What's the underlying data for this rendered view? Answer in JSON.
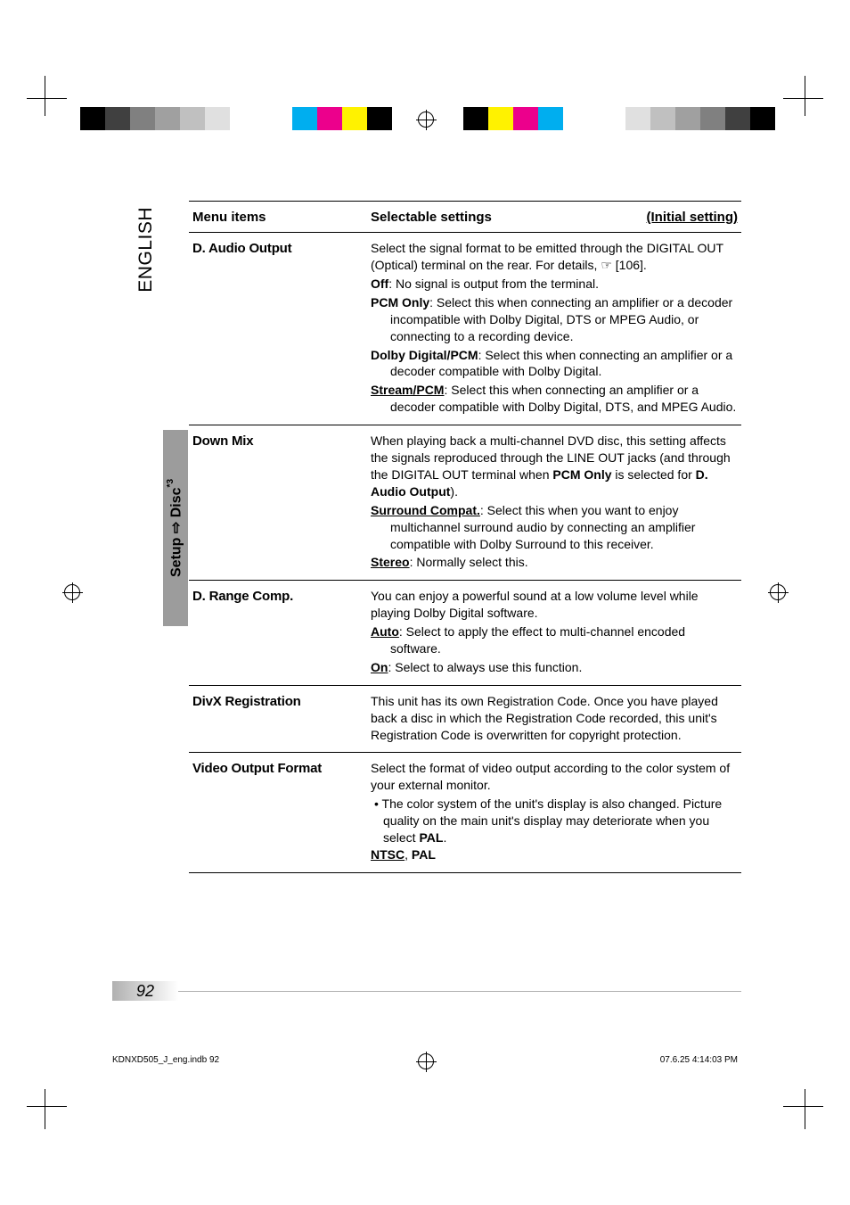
{
  "side_tab": "ENGLISH",
  "setup_tab": {
    "prefix": "Setup ",
    "arrow": "⇨",
    "suffix": " Disc",
    "sup": "*3"
  },
  "header": {
    "col1": "Menu items",
    "col2": "Selectable settings",
    "initial": "(Initial setting)"
  },
  "rows": [
    {
      "menu": "D. Audio Output",
      "body_parts": [
        {
          "t": "plain",
          "v": "Select the signal format to be emitted through the DIGITAL OUT (Optical) terminal on the rear. For details, ☞ [106]."
        },
        {
          "t": "opt",
          "label": "Off",
          "v": ": No signal is output from the terminal."
        },
        {
          "t": "opt",
          "label": "PCM Only",
          "v": ": Select this when connecting an amplifier or a decoder incompatible with Dolby Digital, DTS or MPEG Audio, or connecting to a recording device."
        },
        {
          "t": "opt",
          "label": "Dolby Digital/PCM",
          "v": ": Select this when connecting an amplifier or a decoder compatible with Dolby Digital."
        },
        {
          "t": "optu",
          "label": "Stream/PCM",
          "v": ": Select this when connecting an amplifier or a decoder compatible with Dolby Digital, DTS, and MPEG Audio."
        }
      ]
    },
    {
      "menu": "Down Mix",
      "body_parts": [
        {
          "t": "plain2",
          "pre": "When playing back a multi-channel DVD disc, this setting affects the signals reproduced through the LINE OUT jacks (and through the DIGITAL OUT terminal when ",
          "b1": "PCM Only",
          "mid": " is selected for ",
          "b2": "D. Audio Output",
          "post": ")."
        },
        {
          "t": "optu",
          "label": "Surround Compat.",
          "v": ": Select this when you want to enjoy multichannel surround audio by connecting an amplifier compatible with Dolby Surround to this receiver."
        },
        {
          "t": "optu",
          "label": "Stereo",
          "v": ": Normally select this."
        }
      ]
    },
    {
      "menu": "D. Range Comp.",
      "body_parts": [
        {
          "t": "plain",
          "v": "You can enjoy a powerful sound at a low volume level while playing Dolby Digital software."
        },
        {
          "t": "optu",
          "label": "Auto",
          "v": ": Select to apply the effect to multi-channel encoded software."
        },
        {
          "t": "optu",
          "label": "On",
          "v": ": Select to always use this function."
        }
      ]
    },
    {
      "menu": "DivX Registration",
      "body_parts": [
        {
          "t": "plain",
          "v": "This unit has its own Registration Code. Once you have played back a disc in which the Registration Code recorded, this unit's Registration Code is overwritten for copyright protection."
        }
      ]
    },
    {
      "menu": "Video Output Format",
      "body_parts": [
        {
          "t": "plain",
          "v": "Select the format of video output according to the color system of your external monitor."
        },
        {
          "t": "bullet",
          "pre": "• The color system of the unit's display is also changed. Picture quality on the main unit's display may deteriorate when you select ",
          "b": "PAL",
          "post": "."
        },
        {
          "t": "ntsc",
          "u": "NTSC",
          "sep": ", ",
          "b": "PAL"
        }
      ]
    }
  ],
  "page_number": "92",
  "footer_left": "KDNXD505_J_eng.indb   92",
  "footer_right": "07.6.25   4:14:03 PM",
  "colors": {
    "tab_bg": "#9c9c9c",
    "gray": "#b0b0b0",
    "cal": [
      "#00aeef",
      "#ec008c",
      "#fff200",
      "#808080",
      "#404040",
      "#000000",
      "#c0c0c0",
      "#e0e0e0"
    ]
  }
}
